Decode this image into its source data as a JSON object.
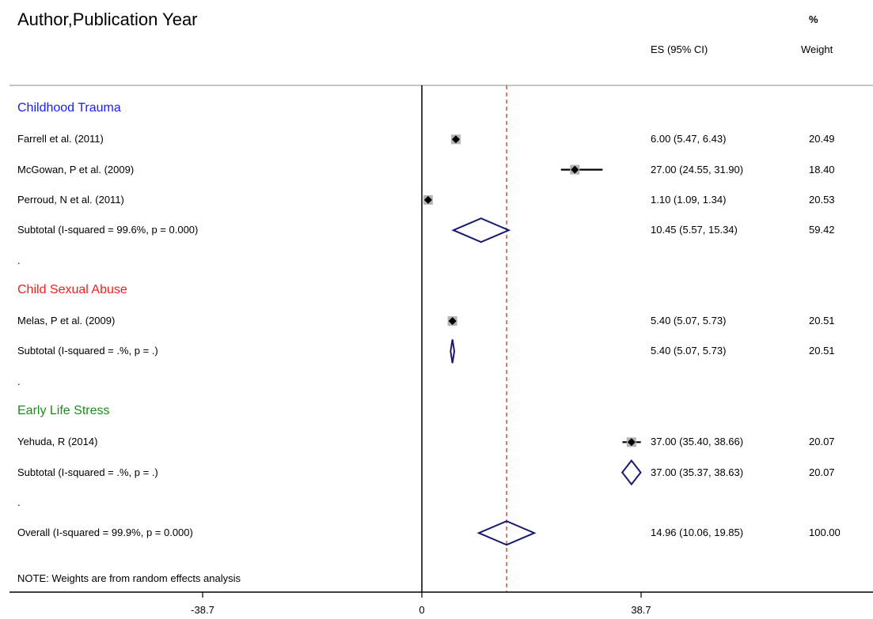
{
  "header": {
    "title": "Author,Publication Year",
    "pct_label": "%",
    "es_label": "ES (95% CI)",
    "weight_label": "Weight"
  },
  "colors": {
    "group_childhood": "#1a1aff",
    "group_csa": "#ff1a1a",
    "group_els": "#1a8c1a",
    "diamond": "#1a1a6e",
    "ref_line": "#c0392b"
  },
  "rows": [
    {
      "kind": "group",
      "label": "Childhood Trauma",
      "color": "#1a1aff"
    },
    {
      "kind": "study",
      "label": "Farrell et al. (2011)",
      "es": 6.0,
      "lo": 5.47,
      "hi": 6.43,
      "ci_text": "6.00 (5.47, 6.43)",
      "weight": "20.49"
    },
    {
      "kind": "study",
      "label": "McGowan, P et al. (2009)",
      "es": 27.0,
      "lo": 24.55,
      "hi": 31.9,
      "ci_text": "27.00 (24.55, 31.90)",
      "weight": "18.40"
    },
    {
      "kind": "study",
      "label": "Perroud, N et al. (2011)",
      "es": 1.1,
      "lo": 1.09,
      "hi": 1.34,
      "ci_text": "1.10 (1.09, 1.34)",
      "weight": "20.53"
    },
    {
      "kind": "subtotal",
      "label": "Subtotal  (I-squared = 99.6%, p = 0.000)",
      "es": 10.45,
      "lo": 5.57,
      "hi": 15.34,
      "ci_text": "10.45 (5.57, 15.34)",
      "weight": "59.42"
    },
    {
      "kind": "dot",
      "label": "."
    },
    {
      "kind": "group",
      "label": "Child Sexual Abuse",
      "color": "#ff1a1a"
    },
    {
      "kind": "study",
      "label": "Melas, P et al. (2009)",
      "es": 5.4,
      "lo": 5.07,
      "hi": 5.73,
      "ci_text": "5.40 (5.07, 5.73)",
      "weight": "20.51"
    },
    {
      "kind": "subtotal",
      "label": "Subtotal  (I-squared = .%, p = .)",
      "es": 5.4,
      "lo": 5.07,
      "hi": 5.73,
      "ci_text": "5.40 (5.07, 5.73)",
      "weight": "20.51"
    },
    {
      "kind": "dot",
      "label": "."
    },
    {
      "kind": "group",
      "label": "Early Life Stress",
      "color": "#1a8c1a"
    },
    {
      "kind": "study",
      "label": "Yehuda, R (2014)",
      "es": 37.0,
      "lo": 35.4,
      "hi": 38.66,
      "ci_text": "37.00 (35.40, 38.66)",
      "weight": "20.07"
    },
    {
      "kind": "subtotal",
      "label": "Subtotal  (I-squared = .%, p = .)",
      "es": 37.0,
      "lo": 35.37,
      "hi": 38.63,
      "ci_text": "37.00 (35.37, 38.63)",
      "weight": "20.07"
    },
    {
      "kind": "dot",
      "label": "."
    },
    {
      "kind": "overall",
      "label": "Overall  (I-squared = 99.9%, p = 0.000)",
      "es": 14.96,
      "lo": 10.06,
      "hi": 19.85,
      "ci_text": "14.96 (10.06, 19.85)",
      "weight": "100.00"
    }
  ],
  "note": "NOTE: Weights are from random effects analysis",
  "chart_data": {
    "type": "scatter",
    "subtype": "forest",
    "title": "",
    "xlabel": "",
    "ylabel": "",
    "xlim": [
      -38.7,
      38.7
    ],
    "xticks": [
      -38.7,
      0,
      38.7
    ],
    "xtick_labels": [
      "-38.7",
      "0",
      "38.7"
    ],
    "null_line": 0,
    "overall_line": 14.96,
    "grid": false,
    "series": [
      {
        "name": "",
        "x": [
          6.0,
          27.0,
          1.1,
          5.4,
          37.0
        ]
      }
    ]
  }
}
